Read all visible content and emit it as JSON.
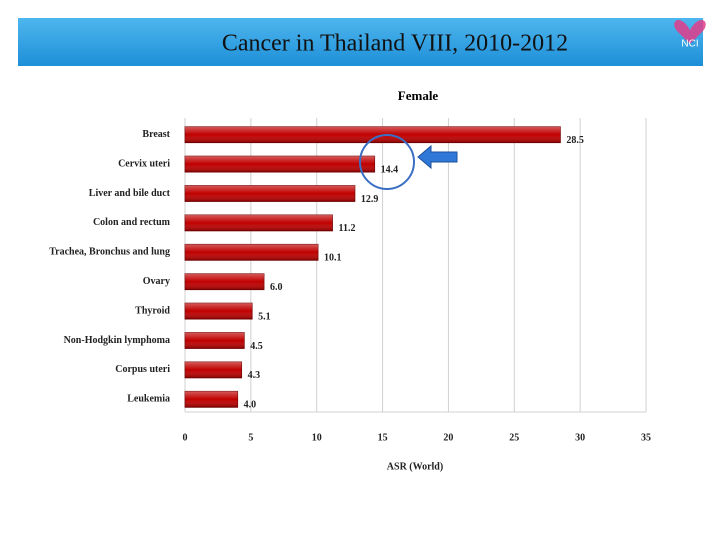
{
  "header": {
    "title": "Cancer in Thailand VIII, 2010-2012",
    "logo_text": "NCI"
  },
  "chart_data": {
    "type": "bar",
    "orientation": "horizontal",
    "title": "Female",
    "x_label": "ASR (World)",
    "categories": [
      "Breast",
      "Cervix uteri",
      "Liver and bile duct",
      "Colon and rectum",
      "Trachea, Bronchus and lung",
      "Ovary",
      "Thyroid",
      "Non-Hodgkin lymphoma",
      "Corpus uteri",
      "Leukemia"
    ],
    "values": [
      28.5,
      14.4,
      12.9,
      11.2,
      10.1,
      6.0,
      5.1,
      4.5,
      4.3,
      4.0
    ],
    "value_labels": [
      "28.5",
      "14.4",
      "12.9",
      "11.2",
      "10.1",
      "6.0",
      "5.1",
      "4.5",
      "4.3",
      "4.0"
    ],
    "color": "#c00000",
    "xlim": [
      0,
      35
    ],
    "xticks": [
      0,
      5,
      10,
      15,
      20,
      25,
      30,
      35
    ],
    "grid": true
  }
}
